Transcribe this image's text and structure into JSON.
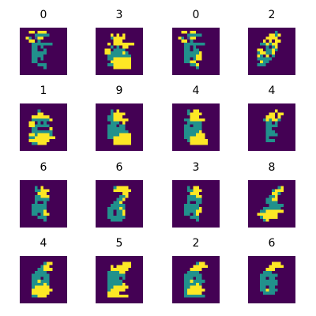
{
  "chart_data": {
    "type": "heatmap",
    "grid": {
      "rows": 4,
      "cols": 4
    },
    "pixels_per_tile": [
      16,
      16
    ],
    "axes": "off",
    "colors": {
      "low": "#440154",
      "mid": "#21918c",
      "high": "#fde725"
    },
    "panels": [
      {
        "label": "0",
        "rows": [
          "0000000000000000",
          "0003303330000000",
          "0000022222000000",
          "0032013300000000",
          "0003302000000000",
          "0000222222200000",
          "0000220200000000",
          "0000220020000000",
          "0000222220000000",
          "0000222200000000",
          "0000220200000000",
          "0000220000000000",
          "0000002220000000",
          "0000000020000000",
          "0000000000000000",
          "0000000000000000"
        ]
      },
      {
        "label": "3",
        "rows": [
          "0000000000000000",
          "0000000000000000",
          "0000030303000000",
          "0000023333000000",
          "0000003330000000",
          "0000303333333000",
          "0000020203300000",
          "0003302222000000",
          "0003322223200000",
          "0000222222220000",
          "0000223333330000",
          "0000033333330000",
          "0000223333330000",
          "0000003333330000",
          "0000000000000000",
          "0000000000000000"
        ]
      },
      {
        "label": "0",
        "rows": [
          "0000000000000000",
          "0003303300000000",
          "0000022222000000",
          "0032013300000000",
          "0003302000000000",
          "0000222222200000",
          "0000220200000000",
          "0000220220000000",
          "0000222223000000",
          "0000222233000000",
          "0000220233000000",
          "0000223300000000",
          "0000002230000000",
          "0000000020000000",
          "0000000000000000",
          "0000000000000000"
        ]
      },
      {
        "label": "2",
        "rows": [
          "0000000000000000",
          "0000000002000000",
          "0000000332300000",
          "0000003333000000",
          "0000030303300000",
          "0000223233000000",
          "0000002023000000",
          "0003302232000000",
          "0002332230000000",
          "0003203020000000",
          "0002222200000000",
          "0000322000000000",
          "0002220000000000",
          "0000000000000000",
          "0000000000000000",
          "0000000000000000"
        ]
      },
      {
        "label": "1",
        "rows": [
          "0000000000000000",
          "0000000000000000",
          "0000002000000000",
          "0000003300000000",
          "0000333333000000",
          "0000222222300000",
          "0003302020000000",
          "0003322222000000",
          "0000220000300000",
          "0000222222200000",
          "0003323333200000",
          "0002233333330000",
          "0003333333000000",
          "0000223330000000",
          "0000000000000000",
          "0000000000000000"
        ]
      },
      {
        "label": "9",
        "rows": [
          "0000000000000000",
          "0000000000000000",
          "0000020300000000",
          "0000023333000000",
          "0000223330000000",
          "0000223333300000",
          "0000022203000000",
          "0000222022000000",
          "0000222222000000",
          "0000222222200000",
          "0000222233330000",
          "0000223333330000",
          "0000003333330000",
          "0000003333330000",
          "0000000000000000",
          "0000000000000000"
        ]
      },
      {
        "label": "4",
        "rows": [
          "0000000000000000",
          "0000000000000000",
          "0000020330000000",
          "0000023333000000",
          "0000003330000000",
          "0000223333300000",
          "0000022222000000",
          "0000220222000000",
          "0000222222000000",
          "0000222223000000",
          "0000222233300000",
          "0000223333300000",
          "0000023333330000",
          "0000003333330000",
          "0000000000000000",
          "0000000000000000"
        ]
      },
      {
        "label": "4",
        "rows": [
          "0000000000000000",
          "0000000000000000",
          "0000000003000000",
          "0000000330330000",
          "0000003330300000",
          "0000023233200000",
          "0000002202000000",
          "0000002222000000",
          "0000002200000000",
          "0000002220000000",
          "0000002222000000",
          "0000002000000000",
          "0000002220000000",
          "0000000000000000",
          "0000000000000000",
          "0000000000000000"
        ]
      },
      {
        "label": "6",
        "rows": [
          "0000000000000000",
          "0000000000000000",
          "0000020300000000",
          "0000022333000000",
          "0000003330000000",
          "0000022333000000",
          "0000022222000000",
          "0000020020000000",
          "0000222220000000",
          "0000222220000000",
          "0000222230000000",
          "0000220233000000",
          "0000002220000000",
          "0000000020000000",
          "0000000000000000",
          "0000000000000000"
        ]
      },
      {
        "label": "6",
        "rows": [
          "0000000000000000",
          "0000000000000000",
          "0000002333300000",
          "0000003333330000",
          "0000000003300000",
          "0000000022300000",
          "0000000223000000",
          "0000002230000000",
          "0000022222000000",
          "0000222232000000",
          "0000220223000000",
          "0000220223000000",
          "0000222222000000",
          "0000022220000000",
          "0000000000000000",
          "0000000000000000"
        ]
      },
      {
        "label": "3",
        "rows": [
          "0000000000000000",
          "0000000000000000",
          "0000020330000000",
          "0000022333000000",
          "0000003330000000",
          "0000022233000000",
          "0000022222000000",
          "0000020022000000",
          "0000222220000000",
          "0000222223000000",
          "0000222233000000",
          "0000220230000000",
          "0000002220000000",
          "0000000020000000",
          "0000000000000000",
          "0000000000000000"
        ]
      },
      {
        "label": "8",
        "rows": [
          "0000000000000000",
          "0000000000000000",
          "0000000000230000",
          "0000000023330000",
          "0000000033200000",
          "0000000223000000",
          "0000002233000000",
          "0000002222000000",
          "0000000222220000",
          "0000022222200000",
          "0000223333330000",
          "0003333333000000",
          "0000233333000000",
          "0000023000000000",
          "0000000000000000",
          "0000000000000000"
        ]
      },
      {
        "label": "4",
        "rows": [
          "0000000000000000",
          "0000000000000000",
          "0000000023300000",
          "0000000233000000",
          "0000002233300000",
          "0000022220000000",
          "0000222222000000",
          "0000222022000000",
          "0000223222000000",
          "0000222232000000",
          "0000233333000000",
          "0000333333300000",
          "0000333333000000",
          "0000223330000000",
          "0000000000000000",
          "0000000000000000"
        ]
      },
      {
        "label": "5",
        "rows": [
          "0000000000000000",
          "0000000000000000",
          "0000000003330000",
          "0000030333330000",
          "0000033333300000",
          "0000222233000000",
          "0000222222000000",
          "0000222202000000",
          "0000222220000000",
          "0000222223000000",
          "0000223333300000",
          "0000233333000000",
          "0000333300000000",
          "0000333333300000",
          "0000000000000000",
          "0000000000000000"
        ]
      },
      {
        "label": "2",
        "rows": [
          "0000000000000000",
          "0000000000000000",
          "0000000023300000",
          "0000000333330000",
          "0000003333000000",
          "0000022220000000",
          "0000222222000000",
          "0000222022000000",
          "0000223222200000",
          "0000222232000000",
          "0000223333000000",
          "0000233333300000",
          "0000233333000000",
          "0000222222200000",
          "0000000000000000",
          "0000000000000000"
        ]
      },
      {
        "label": "6",
        "rows": [
          "0000000000000000",
          "0000000000000000",
          "0000000033300000",
          "0000000333330000",
          "0000003330000000",
          "0000022200000000",
          "0000222222000000",
          "0000220220000000",
          "0000222222000000",
          "0000222222000000",
          "0000220220000000",
          "0000223222000000",
          "0000022220000000",
          "0000000000000000",
          "0000000000000000",
          "0000000000000000"
        ]
      }
    ]
  }
}
